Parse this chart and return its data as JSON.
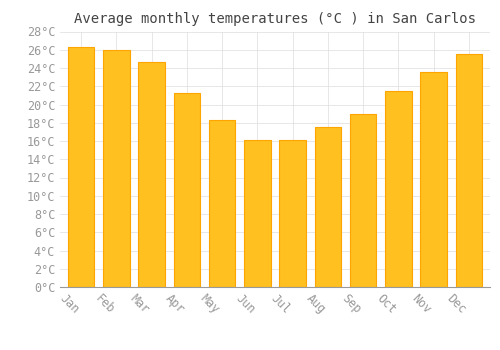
{
  "title": "Average monthly temperatures (°C ) in San Carlos",
  "months": [
    "Jan",
    "Feb",
    "Mar",
    "Apr",
    "May",
    "Jun",
    "Jul",
    "Aug",
    "Sep",
    "Oct",
    "Nov",
    "Dec"
  ],
  "values": [
    26.3,
    26.0,
    24.7,
    21.3,
    18.3,
    16.1,
    16.1,
    17.5,
    19.0,
    21.5,
    23.6,
    25.5
  ],
  "bar_color": "#FFC020",
  "bar_edge_color": "#FFA500",
  "background_color": "#FFFFFF",
  "grid_color": "#DDDDDD",
  "text_color": "#999999",
  "title_color": "#444444",
  "ylim": [
    0,
    28
  ],
  "ytick_step": 2,
  "title_fontsize": 10,
  "tick_fontsize": 8.5,
  "bar_width": 0.75
}
